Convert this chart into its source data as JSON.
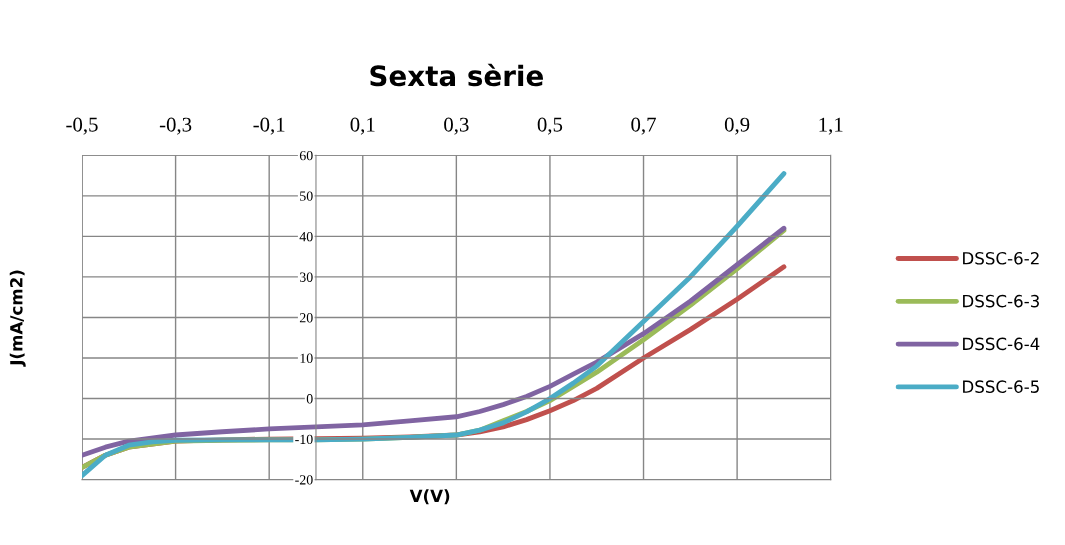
{
  "chart_data": {
    "type": "line",
    "title": "Sexta sèrie",
    "xlabel": "V(V)",
    "ylabel": "J(mA/cm2)",
    "xlim": [
      -0.5,
      1.1
    ],
    "ylim": [
      -20,
      60
    ],
    "xticks": [
      {
        "value": -0.5,
        "label": "-0,5"
      },
      {
        "value": -0.3,
        "label": "-0,3"
      },
      {
        "value": -0.1,
        "label": "-0,1"
      },
      {
        "value": 0.1,
        "label": "0,1"
      },
      {
        "value": 0.3,
        "label": "0,3"
      },
      {
        "value": 0.5,
        "label": "0,5"
      },
      {
        "value": 0.7,
        "label": "0,7"
      },
      {
        "value": 0.9,
        "label": "0,9"
      },
      {
        "value": 1.1,
        "label": "1,1"
      }
    ],
    "yticks": [
      -20,
      -10,
      0,
      10,
      20,
      30,
      40,
      50,
      60
    ],
    "grid": true,
    "legend": "right",
    "marker": "none",
    "line_style": "solid",
    "series": [
      {
        "name": "DSSC-6-2",
        "color": "#c0504d",
        "x": [
          -0.5,
          -0.45,
          -0.4,
          -0.3,
          -0.2,
          -0.1,
          0,
          0.1,
          0.2,
          0.3,
          0.35,
          0.4,
          0.45,
          0.5,
          0.55,
          0.6,
          0.7,
          0.8,
          0.9,
          1.0
        ],
        "values": [
          -17,
          -14,
          -12,
          -10.5,
          -10.2,
          -10,
          -9.9,
          -9.8,
          -9.5,
          -9,
          -8.2,
          -7,
          -5.2,
          -3,
          -0.5,
          2.5,
          10,
          17,
          24.5,
          32.5
        ]
      },
      {
        "name": "DSSC-6-3",
        "color": "#9bbb59",
        "x": [
          -0.5,
          -0.45,
          -0.4,
          -0.3,
          -0.2,
          -0.1,
          0,
          0.1,
          0.2,
          0.3,
          0.35,
          0.4,
          0.45,
          0.5,
          0.55,
          0.6,
          0.7,
          0.8,
          0.9,
          1.0
        ],
        "values": [
          -17,
          -14,
          -12,
          -10.5,
          -10.3,
          -10.2,
          -10.2,
          -10,
          -9.6,
          -9,
          -7.8,
          -5.5,
          -3.2,
          -0.5,
          3,
          6.5,
          14.5,
          23,
          32,
          41.5
        ]
      },
      {
        "name": "DSSC-6-4",
        "color": "#8064a2",
        "x": [
          -0.5,
          -0.45,
          -0.4,
          -0.3,
          -0.2,
          -0.1,
          0,
          0.1,
          0.2,
          0.3,
          0.35,
          0.4,
          0.45,
          0.5,
          0.55,
          0.6,
          0.7,
          0.8,
          0.9,
          1.0
        ],
        "values": [
          -14,
          -12,
          -10.5,
          -9,
          -8.2,
          -7.5,
          -7,
          -6.5,
          -5.5,
          -4.5,
          -3.2,
          -1.5,
          0.5,
          3,
          6,
          9,
          16,
          24,
          33,
          42
        ]
      },
      {
        "name": "DSSC-6-5",
        "color": "#4bacc6",
        "x": [
          -0.5,
          -0.45,
          -0.4,
          -0.35,
          -0.3,
          -0.2,
          -0.1,
          0,
          0.1,
          0.2,
          0.3,
          0.35,
          0.4,
          0.45,
          0.5,
          0.55,
          0.6,
          0.7,
          0.8,
          0.9,
          1.0
        ],
        "values": [
          -19,
          -14,
          -11.5,
          -10.7,
          -10.3,
          -10.2,
          -10.2,
          -10.2,
          -10,
          -9.6,
          -9,
          -7.8,
          -6,
          -3.3,
          0,
          3.8,
          8,
          19,
          30,
          42.5,
          55.5
        ]
      }
    ]
  }
}
